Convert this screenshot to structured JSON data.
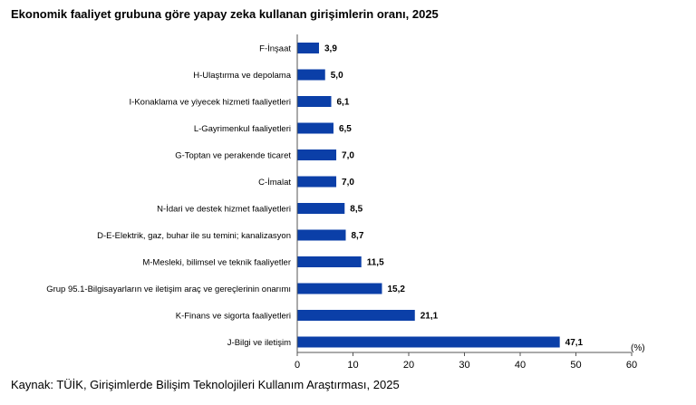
{
  "chart_data": {
    "type": "bar",
    "orientation": "horizontal",
    "title": "Ekonomik faaliyet grubuna göre yapay zeka kullanan girişimlerin oranı, 2025",
    "source": "Kaynak: TÜİK, Girişimlerde Bilişim Teknolojileri Kullanım Araştırması, 2025",
    "xlabel": "(%)",
    "xlim": [
      0,
      60
    ],
    "xticks": [
      "0",
      "10",
      "20",
      "30",
      "40",
      "50",
      "60"
    ],
    "grid": false,
    "bar_color": "#0b3fa8",
    "categories": [
      "F-İnşaat",
      "H-Ulaştırma ve depolama",
      "I-Konaklama ve yiyecek hizmeti faaliyetleri",
      "L-Gayrimenkul faaliyetleri",
      "G-Toptan ve perakende ticaret",
      "C-İmalat",
      "N-İdari ve destek hizmet faaliyetleri",
      "D-E-Elektrik, gaz, buhar ile su temini; kanalizasyon",
      "M-Mesleki, bilimsel ve teknik faaliyetler",
      "Grup 95.1-Bilgisayarların ve iletişim araç ve gereçlerinin onarımı",
      "K-Finans ve sigorta faaliyetleri",
      "J-Bilgi ve iletişim"
    ],
    "values": [
      3.9,
      5.0,
      6.1,
      6.5,
      7.0,
      7.0,
      8.5,
      8.7,
      11.5,
      15.2,
      21.1,
      47.1
    ],
    "value_labels": [
      "3,9",
      "5,0",
      "6,1",
      "6,5",
      "7,0",
      "7,0",
      "8,5",
      "8,7",
      "11,5",
      "15,2",
      "21,1",
      "47,1"
    ]
  }
}
